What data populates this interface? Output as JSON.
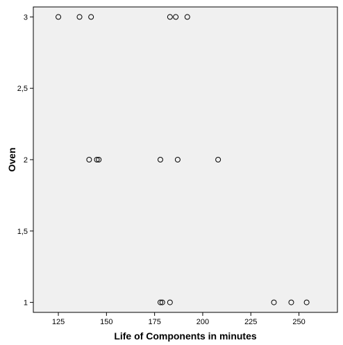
{
  "chart_data": {
    "type": "scatter",
    "title": "",
    "xlabel": "Life of Components in minutes",
    "ylabel": "Oven",
    "xlim": [
      112,
      270
    ],
    "ylim": [
      0.93,
      3.07
    ],
    "x_ticks": [
      125,
      150,
      175,
      200,
      225,
      250
    ],
    "x_tick_labels": [
      "125",
      "150",
      "175",
      "200",
      "225",
      "250"
    ],
    "y_ticks": [
      1,
      1.5,
      2,
      2.5,
      3
    ],
    "y_tick_labels": [
      "1",
      "1,5",
      "2",
      "2,5",
      "3"
    ],
    "grid": false,
    "plot_background": "#f0f0f0",
    "points": [
      {
        "x": 125,
        "y": 3
      },
      {
        "x": 136,
        "y": 3
      },
      {
        "x": 142,
        "y": 3
      },
      {
        "x": 183,
        "y": 3
      },
      {
        "x": 186,
        "y": 3
      },
      {
        "x": 192,
        "y": 3
      },
      {
        "x": 141,
        "y": 2
      },
      {
        "x": 145,
        "y": 2
      },
      {
        "x": 146,
        "y": 2
      },
      {
        "x": 178,
        "y": 2
      },
      {
        "x": 187,
        "y": 2
      },
      {
        "x": 208,
        "y": 2
      },
      {
        "x": 178,
        "y": 1
      },
      {
        "x": 179,
        "y": 1
      },
      {
        "x": 183,
        "y": 1
      },
      {
        "x": 237,
        "y": 1
      },
      {
        "x": 246,
        "y": 1
      },
      {
        "x": 254,
        "y": 1
      }
    ]
  }
}
